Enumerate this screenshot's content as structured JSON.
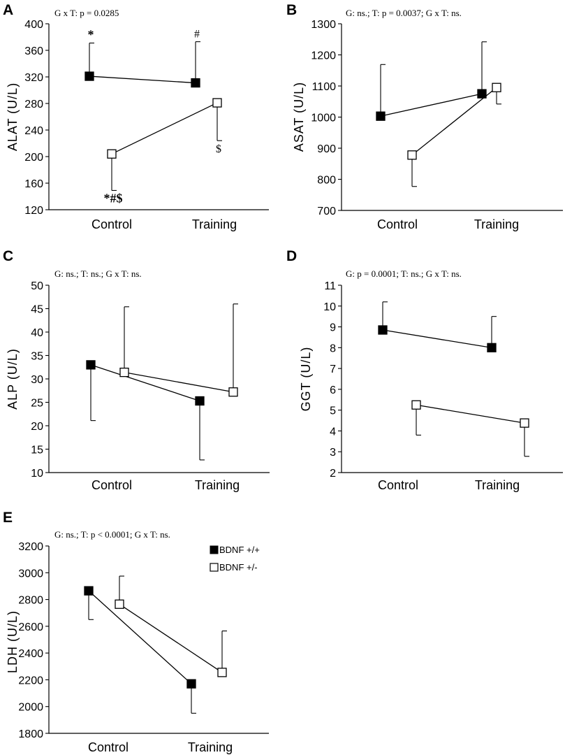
{
  "legend": {
    "filled_label": "BDNF +/+",
    "open_label": "BDNF +/-"
  },
  "chart_data": [
    {
      "type": "line",
      "panel": "A",
      "title": "G x T: p = 0.0285",
      "ylabel": "ALAT (U/L)",
      "categories": [
        "Control",
        "Training"
      ],
      "ylim": [
        120,
        400
      ],
      "yticks": [
        120,
        160,
        200,
        240,
        280,
        320,
        360,
        400
      ],
      "series": [
        {
          "name": "BDNF +/+",
          "marker": "filled",
          "values": [
            321,
            311
          ],
          "err": [
            50,
            62
          ],
          "err_dir": "up"
        },
        {
          "name": "BDNF +/-",
          "marker": "open",
          "values": [
            204,
            281
          ],
          "err": [
            55,
            57
          ],
          "err_dir": "down"
        }
      ],
      "annotations": [
        {
          "text": "*",
          "series": 0,
          "point": 0,
          "pos": "above",
          "style": "bold"
        },
        {
          "text": "#",
          "series": 0,
          "point": 1,
          "pos": "above",
          "style": "normal"
        },
        {
          "text": "*#$",
          "series": 1,
          "point": 0,
          "pos": "below",
          "style": "bold"
        },
        {
          "text": "$",
          "series": 1,
          "point": 1,
          "pos": "below",
          "style": "normal"
        }
      ]
    },
    {
      "type": "line",
      "panel": "B",
      "title": "G: ns.; T: p = 0.0037; G x T: ns.",
      "ylabel": "ASAT (U/L)",
      "categories": [
        "Control",
        "Training"
      ],
      "ylim": [
        700,
        1300
      ],
      "yticks": [
        700,
        800,
        900,
        1000,
        1100,
        1200,
        1300
      ],
      "series": [
        {
          "name": "BDNF +/+",
          "marker": "filled",
          "values": [
            1003,
            1075
          ],
          "err": [
            166,
            167
          ],
          "err_dir": "up"
        },
        {
          "name": "BDNF +/-",
          "marker": "open",
          "values": [
            878,
            1095
          ],
          "err": [
            101,
            53
          ],
          "err_dir": "down"
        }
      ],
      "annotations": []
    },
    {
      "type": "line",
      "panel": "C",
      "title": "G: ns.; T: ns.; G x T: ns.",
      "ylabel": "ALP (U/L)",
      "categories": [
        "Control",
        "Training"
      ],
      "ylim": [
        10,
        50
      ],
      "yticks": [
        10,
        15,
        20,
        25,
        30,
        35,
        40,
        45,
        50
      ],
      "series": [
        {
          "name": "BDNF +/+",
          "marker": "filled",
          "values": [
            33.0,
            25.3
          ],
          "err": [
            11.9,
            12.6
          ],
          "err_dir": "down"
        },
        {
          "name": "BDNF +/-",
          "marker": "open",
          "values": [
            31.4,
            27.2
          ],
          "err": [
            14.0,
            18.8
          ],
          "err_dir": "up"
        }
      ],
      "annotations": []
    },
    {
      "type": "line",
      "panel": "D",
      "title": "G: p = 0.0001; T: ns.; G x T: ns.",
      "ylabel": "GGT (U/L)",
      "categories": [
        "Control",
        "Training"
      ],
      "ylim": [
        2,
        11
      ],
      "yticks": [
        2,
        3,
        4,
        5,
        6,
        7,
        8,
        9,
        10,
        11
      ],
      "series": [
        {
          "name": "BDNF +/+",
          "marker": "filled",
          "values": [
            8.85,
            8.0
          ],
          "err": [
            1.35,
            1.5
          ],
          "err_dir": "up"
        },
        {
          "name": "BDNF +/-",
          "marker": "open",
          "values": [
            5.25,
            4.38
          ],
          "err": [
            1.45,
            1.6
          ],
          "err_dir": "down"
        }
      ],
      "annotations": []
    },
    {
      "type": "line",
      "panel": "E",
      "title": "G: ns.; T: p < 0.0001; G x T: ns.",
      "ylabel": "LDH (U/L)",
      "categories": [
        "Control",
        "Training"
      ],
      "ylim": [
        1800,
        3200
      ],
      "yticks": [
        1800,
        2000,
        2200,
        2400,
        2600,
        2800,
        3000,
        3200
      ],
      "series": [
        {
          "name": "BDNF +/+",
          "marker": "filled",
          "values": [
            2865,
            2170
          ],
          "err": [
            215,
            220
          ],
          "err_dir": "down"
        },
        {
          "name": "BDNF +/-",
          "marker": "open",
          "values": [
            2765,
            2255
          ],
          "err": [
            210,
            310
          ],
          "err_dir": "up"
        }
      ],
      "annotations": []
    }
  ]
}
